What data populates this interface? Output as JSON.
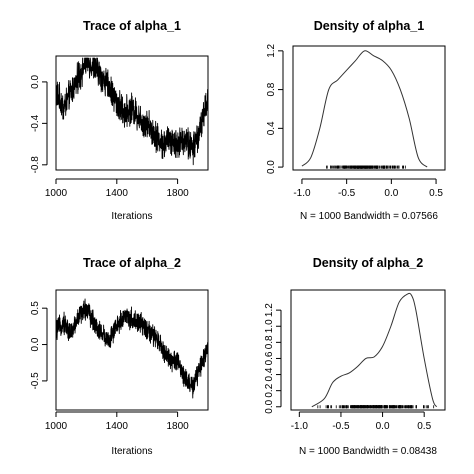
{
  "chart_data": [
    {
      "type": "line",
      "title": "Trace of alpha_1",
      "xlabel": "Iterations",
      "ylabel": "",
      "xlim": [
        1000,
        2000
      ],
      "ylim": [
        -0.85,
        0.25
      ],
      "xticks": [
        1000,
        1400,
        1800
      ],
      "xtick_labels": [
        "1000",
        "1400",
        "1800"
      ],
      "yticks": [
        -0.8,
        -0.4,
        0.0
      ],
      "ytick_labels": [
        "-0.8",
        "-0.4",
        "0.0"
      ],
      "anchors": {
        "x": [
          1000,
          1050,
          1100,
          1150,
          1200,
          1250,
          1300,
          1350,
          1400,
          1450,
          1500,
          1550,
          1600,
          1650,
          1700,
          1750,
          1800,
          1850,
          1900,
          1950,
          2000
        ],
        "y": [
          -0.1,
          -0.25,
          -0.1,
          0.05,
          0.2,
          0.15,
          0.05,
          -0.05,
          -0.2,
          -0.3,
          -0.25,
          -0.35,
          -0.4,
          -0.5,
          -0.6,
          -0.55,
          -0.6,
          -0.55,
          -0.65,
          -0.45,
          -0.15
        ]
      },
      "grid": false
    },
    {
      "type": "line",
      "title": "Density of alpha_1",
      "xlabel": "N = 1000   Bandwidth = 0.07566",
      "ylabel": "",
      "xlim": [
        -1.1,
        0.6
      ],
      "ylim": [
        -0.03,
        1.25
      ],
      "xticks": [
        -1.0,
        -0.5,
        0.0,
        0.5
      ],
      "xtick_labels": [
        "-1.0",
        "-0.5",
        "0.0",
        "0.5"
      ],
      "yticks": [
        0.0,
        0.4,
        0.8,
        1.2
      ],
      "ytick_labels": [
        "0.0",
        "0.4",
        "0.8",
        "1.2"
      ],
      "x": [
        -1.0,
        -0.9,
        -0.8,
        -0.7,
        -0.6,
        -0.5,
        -0.4,
        -0.3,
        -0.2,
        -0.1,
        0.0,
        0.1,
        0.2,
        0.3,
        0.4
      ],
      "y": [
        0.01,
        0.1,
        0.4,
        0.8,
        0.9,
        1.0,
        1.1,
        1.2,
        1.15,
        1.1,
        1.0,
        0.8,
        0.5,
        0.1,
        0.0
      ],
      "rug_range": [
        -0.85,
        0.25
      ],
      "grid": false
    },
    {
      "type": "line",
      "title": "Trace of alpha_2",
      "xlabel": "Iterations",
      "ylabel": "",
      "xlim": [
        1000,
        2000
      ],
      "ylim": [
        -0.9,
        0.75
      ],
      "xticks": [
        1000,
        1400,
        1800
      ],
      "xtick_labels": [
        "1000",
        "1400",
        "1800"
      ],
      "yticks": [
        -0.5,
        0.0,
        0.5
      ],
      "ytick_labels": [
        "-0.5",
        "0.0",
        "0.5"
      ],
      "anchors": {
        "x": [
          1000,
          1050,
          1100,
          1150,
          1200,
          1250,
          1300,
          1350,
          1400,
          1450,
          1500,
          1550,
          1600,
          1650,
          1700,
          1750,
          1800,
          1850,
          1900,
          1950,
          2000
        ],
        "y": [
          0.2,
          0.3,
          0.15,
          0.4,
          0.5,
          0.3,
          0.15,
          0.05,
          0.25,
          0.4,
          0.35,
          0.3,
          0.2,
          0.1,
          -0.05,
          -0.2,
          -0.25,
          -0.45,
          -0.6,
          -0.3,
          0.0
        ]
      },
      "grid": false
    },
    {
      "type": "line",
      "title": "Density of alpha_2",
      "xlabel": "N = 1000   Bandwidth = 0.08438",
      "ylabel": "",
      "xlim": [
        -1.1,
        0.75
      ],
      "ylim": [
        -0.04,
        1.45
      ],
      "xticks": [
        -1.0,
        -0.5,
        0.0,
        0.5
      ],
      "xtick_labels": [
        "-1.0",
        "-0.5",
        "0.0",
        "0.5"
      ],
      "yticks": [
        0.0,
        0.2,
        0.4,
        0.6,
        0.8,
        1.0,
        1.2
      ],
      "ytick_labels": [
        "0.0",
        "0.2",
        "0.4",
        "0.6",
        "0.8",
        "1.0",
        "1.2"
      ],
      "x": [
        -0.85,
        -0.7,
        -0.6,
        -0.5,
        -0.4,
        -0.3,
        -0.2,
        -0.1,
        0.0,
        0.1,
        0.2,
        0.3,
        0.35,
        0.4,
        0.5,
        0.6,
        0.65
      ],
      "y": [
        0.0,
        0.1,
        0.3,
        0.38,
        0.42,
        0.5,
        0.6,
        0.62,
        0.75,
        1.0,
        1.3,
        1.4,
        1.38,
        1.2,
        0.6,
        0.1,
        0.0
      ],
      "rug_range": [
        -0.85,
        0.7
      ],
      "grid": false
    }
  ]
}
